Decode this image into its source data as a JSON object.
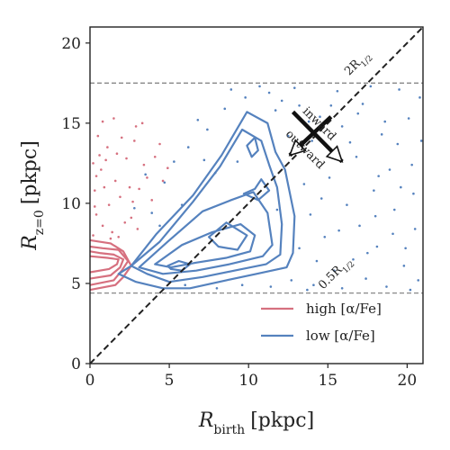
{
  "chart_data": {
    "type": "scatter",
    "xlabel_main": "R",
    "xlabel_sub": "birth",
    "xlabel_unit": "[pkpc]",
    "ylabel_main": "R",
    "ylabel_sub": "z=0",
    "ylabel_unit": "[pkpc]",
    "xlim": [
      0,
      21
    ],
    "ylim": [
      0,
      21
    ],
    "xticks": [
      0,
      5,
      10,
      15,
      20
    ],
    "yticks": [
      0,
      5,
      10,
      15,
      20
    ],
    "hlines": [
      4.4,
      17.5
    ],
    "hline_labels": [
      {
        "text": "0.5R",
        "sub": "1/2",
        "x": 15.6,
        "y": 5.5
      },
      {
        "text": "2R",
        "sub": "1/2",
        "x": 17.0,
        "y": 18.6
      }
    ],
    "annotations": [
      {
        "text": "inward",
        "x": 14.3,
        "y": 14.8,
        "color": "#222222"
      },
      {
        "text": "outward",
        "x": 13.4,
        "y": 13.2,
        "color": "#222222"
      }
    ],
    "colors": {
      "high": "#d6707f",
      "low": "#5582be",
      "identity": "#222222",
      "hline": "#888888"
    },
    "series": [
      {
        "name": "high [α/Fe]",
        "kind": "contours",
        "contours": [
          [
            [
              0,
              4.6
            ],
            [
              1.6,
              4.9
            ],
            [
              2.1,
              5.4
            ],
            [
              2.6,
              6.1
            ],
            [
              2.1,
              7.0
            ],
            [
              1.3,
              7.5
            ],
            [
              0,
              7.7
            ]
          ],
          [
            [
              0,
              4.9
            ],
            [
              1.5,
              5.2
            ],
            [
              2.0,
              5.8
            ],
            [
              2.4,
              6.4
            ],
            [
              1.8,
              7.1
            ],
            [
              0.8,
              7.2
            ],
            [
              0,
              7.3
            ]
          ],
          [
            [
              0,
              5.3
            ],
            [
              1.3,
              5.5
            ],
            [
              1.9,
              6.0
            ],
            [
              2.1,
              6.5
            ],
            [
              1.5,
              6.8
            ],
            [
              0.6,
              6.9
            ],
            [
              0,
              7.0
            ]
          ],
          [
            [
              0,
              5.7
            ],
            [
              1.2,
              5.9
            ],
            [
              1.7,
              6.2
            ],
            [
              1.8,
              6.5
            ],
            [
              1.1,
              6.6
            ],
            [
              0,
              6.7
            ]
          ]
        ],
        "scatter": [
          [
            0.4,
            9.3
          ],
          [
            0.8,
            8.6
          ],
          [
            1.2,
            9.9
          ],
          [
            0.3,
            10.8
          ],
          [
            1.6,
            11.4
          ],
          [
            0.7,
            12.1
          ],
          [
            2.3,
            12.8
          ],
          [
            1.1,
            13.5
          ],
          [
            0.5,
            14.2
          ],
          [
            2.8,
            13.9
          ],
          [
            3.4,
            12.4
          ],
          [
            1.9,
            10.4
          ],
          [
            2.6,
            9.1
          ],
          [
            3.1,
            10.9
          ],
          [
            0.9,
            11.0
          ],
          [
            1.4,
            8.2
          ],
          [
            0.2,
            8.0
          ],
          [
            1.8,
            7.9
          ],
          [
            2.2,
            8.8
          ],
          [
            3.6,
            11.6
          ],
          [
            4.1,
            12.9
          ],
          [
            2.9,
            14.8
          ],
          [
            1.5,
            15.3
          ],
          [
            0.6,
            13.0
          ],
          [
            3.9,
            10.2
          ],
          [
            4.6,
            11.4
          ],
          [
            0.3,
            9.8
          ],
          [
            1.0,
            12.7
          ],
          [
            2.0,
            14.1
          ],
          [
            3.3,
            15.0
          ],
          [
            4.4,
            13.7
          ],
          [
            0.8,
            15.1
          ],
          [
            1.3,
            7.8
          ],
          [
            2.5,
            11.0
          ],
          [
            3.0,
            8.4
          ],
          [
            0.4,
            11.7
          ],
          [
            1.7,
            13.1
          ],
          [
            4.9,
            12.2
          ],
          [
            0.2,
            12.5
          ],
          [
            2.7,
            10.1
          ]
        ]
      },
      {
        "name": "low [α/Fe]",
        "kind": "contours",
        "contours": [
          [
            [
              1.8,
              5.6
            ],
            [
              2.6,
              6.1
            ],
            [
              4.2,
              8.1
            ],
            [
              6.5,
              10.5
            ],
            [
              8.3,
              13.0
            ],
            [
              9.9,
              15.7
            ],
            [
              11.2,
              15.0
            ],
            [
              11.7,
              13.2
            ],
            [
              12.3,
              12.1
            ],
            [
              12.9,
              9.2
            ],
            [
              12.8,
              6.9
            ],
            [
              12.4,
              6.0
            ],
            [
              10.5,
              5.6
            ],
            [
              8.6,
              5.2
            ],
            [
              6.3,
              4.7
            ],
            [
              4.6,
              4.7
            ],
            [
              2.9,
              5.1
            ]
          ],
          [
            [
              2.6,
              6.1
            ],
            [
              4.4,
              7.6
            ],
            [
              6.5,
              10.1
            ],
            [
              8.2,
              12.3
            ],
            [
              9.6,
              14.6
            ],
            [
              10.8,
              13.9
            ],
            [
              11.3,
              12.4
            ],
            [
              11.8,
              11.0
            ],
            [
              12.1,
              8.7
            ],
            [
              12.0,
              6.8
            ],
            [
              11.1,
              6.2
            ],
            [
              9.1,
              5.8
            ],
            [
              7.1,
              5.4
            ],
            [
              5.0,
              5.1
            ],
            [
              3.6,
              5.6
            ]
          ],
          [
            [
              3.1,
              6.0
            ],
            [
              4.9,
              7.6
            ],
            [
              7.1,
              9.5
            ],
            [
              8.9,
              10.2
            ],
            [
              10.3,
              10.7
            ],
            [
              11.2,
              9.4
            ],
            [
              11.5,
              7.4
            ],
            [
              10.9,
              6.7
            ],
            [
              8.8,
              6.2
            ],
            [
              6.7,
              5.8
            ],
            [
              4.6,
              5.6
            ]
          ],
          [
            [
              4.1,
              6.2
            ],
            [
              5.8,
              7.4
            ],
            [
              7.7,
              8.2
            ],
            [
              9.5,
              8.7
            ],
            [
              10.4,
              8.0
            ],
            [
              10.1,
              7.0
            ],
            [
              8.6,
              6.6
            ],
            [
              6.7,
              6.3
            ],
            [
              5.1,
              6.0
            ]
          ],
          [
            [
              7.5,
              7.9
            ],
            [
              8.6,
              8.8
            ],
            [
              9.9,
              8.0
            ],
            [
              9.3,
              7.1
            ],
            [
              8.1,
              7.3
            ]
          ],
          [
            [
              4.9,
              6.1
            ],
            [
              5.6,
              6.4
            ],
            [
              6.3,
              6.2
            ],
            [
              5.8,
              5.8
            ],
            [
              5.1,
              5.9
            ]
          ],
          [
            [
              9.9,
              13.6
            ],
            [
              10.4,
              14.1
            ],
            [
              10.6,
              13.3
            ],
            [
              10.2,
              12.9
            ]
          ],
          [
            [
              9.7,
              10.6
            ],
            [
              10.4,
              10.9
            ],
            [
              10.8,
              11.5
            ],
            [
              11.3,
              10.8
            ],
            [
              10.6,
              10.2
            ]
          ]
        ],
        "scatter": [
          [
            13.2,
            16.1
          ],
          [
            14.5,
            15.4
          ],
          [
            15.9,
            14.8
          ],
          [
            17.2,
            16.2
          ],
          [
            18.6,
            15.1
          ],
          [
            19.4,
            13.7
          ],
          [
            20.3,
            12.4
          ],
          [
            16.8,
            12.9
          ],
          [
            15.1,
            11.6
          ],
          [
            17.9,
            10.8
          ],
          [
            19.2,
            9.6
          ],
          [
            20.5,
            8.4
          ],
          [
            18.1,
            7.3
          ],
          [
            16.6,
            6.5
          ],
          [
            14.8,
            7.9
          ],
          [
            13.9,
            9.3
          ],
          [
            19.8,
            6.1
          ],
          [
            20.7,
            5.2
          ],
          [
            17.4,
            5.3
          ],
          [
            15.4,
            5.8
          ],
          [
            14.1,
            4.9
          ],
          [
            12.7,
            5.2
          ],
          [
            16.2,
            9.9
          ],
          [
            18.9,
            12.1
          ],
          [
            20.1,
            15.3
          ],
          [
            14.0,
            13.9
          ],
          [
            13.5,
            11.2
          ],
          [
            19.6,
            11.0
          ],
          [
            18.4,
            14.3
          ],
          [
            17.0,
            8.6
          ],
          [
            12.1,
            16.4
          ],
          [
            11.3,
            16.9
          ],
          [
            9.8,
            16.6
          ],
          [
            8.5,
            15.9
          ],
          [
            7.4,
            14.6
          ],
          [
            6.2,
            13.5
          ],
          [
            5.3,
            12.6
          ],
          [
            4.7,
            11.3
          ],
          [
            6.8,
            15.2
          ],
          [
            8.9,
            17.1
          ],
          [
            10.7,
            17.3
          ],
          [
            12.9,
            17.2
          ],
          [
            15.6,
            17.0
          ],
          [
            17.7,
            17.3
          ],
          [
            19.5,
            17.1
          ],
          [
            20.8,
            16.6
          ],
          [
            5.8,
            9.9
          ],
          [
            3.9,
            9.4
          ],
          [
            4.4,
            8.6
          ],
          [
            7.9,
            11.9
          ],
          [
            6.0,
            4.9
          ],
          [
            8.0,
            4.7
          ],
          [
            9.6,
            4.9
          ],
          [
            11.4,
            4.8
          ],
          [
            13.7,
            4.6
          ],
          [
            15.9,
            4.7
          ],
          [
            18.7,
            4.8
          ],
          [
            20.2,
            4.6
          ],
          [
            3.5,
            11.8
          ],
          [
            2.8,
            9.7
          ],
          [
            7.2,
            12.7
          ],
          [
            9.3,
            12.6
          ],
          [
            11.8,
            9.6
          ],
          [
            13.2,
            7.2
          ],
          [
            14.6,
            10.3
          ],
          [
            16.4,
            13.8
          ],
          [
            18.2,
            11.7
          ],
          [
            19.1,
            8.1
          ],
          [
            20.4,
            10.6
          ],
          [
            15.2,
            16.1
          ],
          [
            13.8,
            15.1
          ],
          [
            16.9,
            15.6
          ],
          [
            12.5,
            14.2
          ],
          [
            11.7,
            15.8
          ],
          [
            20.9,
            13.9
          ],
          [
            17.5,
            6.9
          ],
          [
            15.7,
            8.3
          ],
          [
            14.3,
            6.4
          ],
          [
            19.9,
            7.2
          ],
          [
            18.0,
            9.2
          ]
        ]
      }
    ],
    "identity_line": true,
    "arrows": [
      {
        "start": [
          12.8,
          15.7
        ],
        "end": [
          15.9,
          12.6
        ],
        "label": "inward"
      },
      {
        "start": [
          15.2,
          15.4
        ],
        "end": [
          12.6,
          13.0
        ],
        "label": "outward"
      }
    ],
    "legend": {
      "placement": "lower-right",
      "entries": [
        {
          "label": "high [α/Fe]",
          "color": "#d6707f"
        },
        {
          "label": "low [α/Fe]",
          "color": "#5582be"
        }
      ]
    },
    "grid": false
  }
}
